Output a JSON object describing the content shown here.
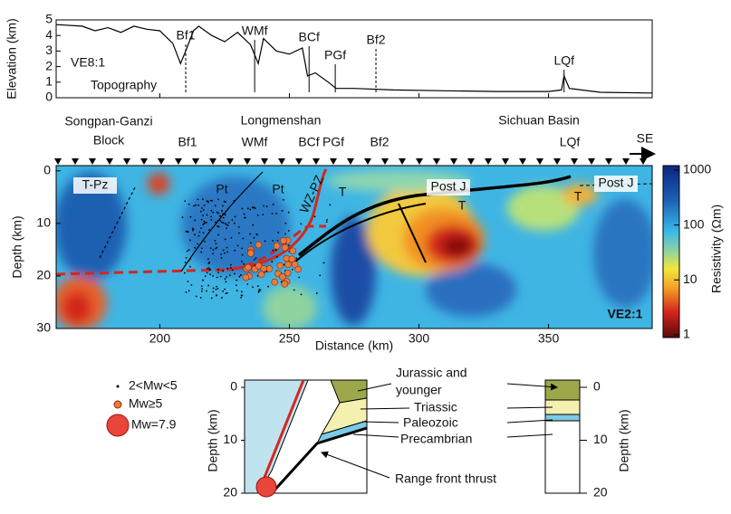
{
  "chart_data": [
    {
      "type": "line",
      "y_label": "Elevation (km)",
      "x": [
        160,
        170,
        175,
        180,
        185,
        190,
        195,
        200,
        205,
        208,
        210,
        213,
        215,
        220,
        225,
        230,
        235,
        238,
        240,
        245,
        250,
        255,
        257,
        260,
        265,
        268,
        275,
        290,
        310,
        330,
        350,
        355,
        356,
        358,
        370,
        390
      ],
      "values": [
        4.7,
        4.6,
        4.3,
        4.5,
        4.2,
        4.6,
        4.4,
        4.3,
        3.5,
        2.2,
        3.0,
        4.3,
        4.6,
        4.0,
        3.6,
        4.2,
        3.4,
        2.2,
        3.8,
        3.0,
        2.8,
        3.2,
        1.4,
        1.6,
        1.0,
        0.6,
        0.6,
        0.5,
        0.45,
        0.4,
        0.4,
        0.5,
        1.4,
        0.6,
        0.35,
        0.3
      ],
      "color": "#000000",
      "xlim": [
        160,
        390
      ],
      "ylim": [
        0,
        5
      ],
      "yticks": [
        0,
        1,
        2,
        3,
        4,
        5
      ],
      "annotations": [
        "VE8:1",
        "Topography"
      ],
      "faults": [
        {
          "text": "Bf1",
          "x": 210,
          "dashed": true
        },
        {
          "text": "WMf",
          "x": 236.6,
          "dashed": false
        },
        {
          "text": "BCf",
          "x": 257.6,
          "dashed": false
        },
        {
          "text": "PGf",
          "x": 267.7,
          "dashed": false
        },
        {
          "text": "Bf2",
          "x": 283.4,
          "dashed": true
        },
        {
          "text": "LQf",
          "x": 356,
          "dashed": false
        }
      ]
    },
    {
      "type": "section",
      "x_label": "Distance (km)",
      "y_label": "Depth (km)",
      "xlim": [
        160,
        390
      ],
      "xticks": [
        200,
        250,
        300,
        350
      ],
      "ylim": [
        -1,
        30
      ],
      "yticks": [
        0,
        10,
        20,
        30
      ],
      "colorbar": {
        "label": "Resistivity (Ωm)",
        "log": true,
        "lim": [
          1,
          1000
        ],
        "ticks": [
          1,
          10,
          100,
          1000
        ]
      },
      "regions": [
        [
          "Songpan-Ganzi",
          "Block"
        ],
        [
          "Longmenshan"
        ],
        [
          "Sichuan Basin"
        ]
      ],
      "faults": [
        "Bf1",
        "WMf",
        "BCf",
        "PGf",
        "Bf2",
        "LQf"
      ],
      "direction": "SE",
      "labels": [
        "T-Pz",
        "Pt",
        "Pt",
        "WZ-PZ",
        "T",
        "Post J",
        "T",
        "Post J",
        "T",
        "VE2:1"
      ]
    }
  ],
  "legend": [
    "2<Mw<5",
    "Mw≥5",
    "Mw=7.9"
  ],
  "diagram": {
    "units": [
      "Jurassic and",
      "younger",
      "Triassic",
      "Paleozoic",
      "Precambrian"
    ],
    "thrust": "Range front thrust",
    "y_label": "Depth (km)",
    "yticks": [
      0,
      10,
      20
    ]
  }
}
